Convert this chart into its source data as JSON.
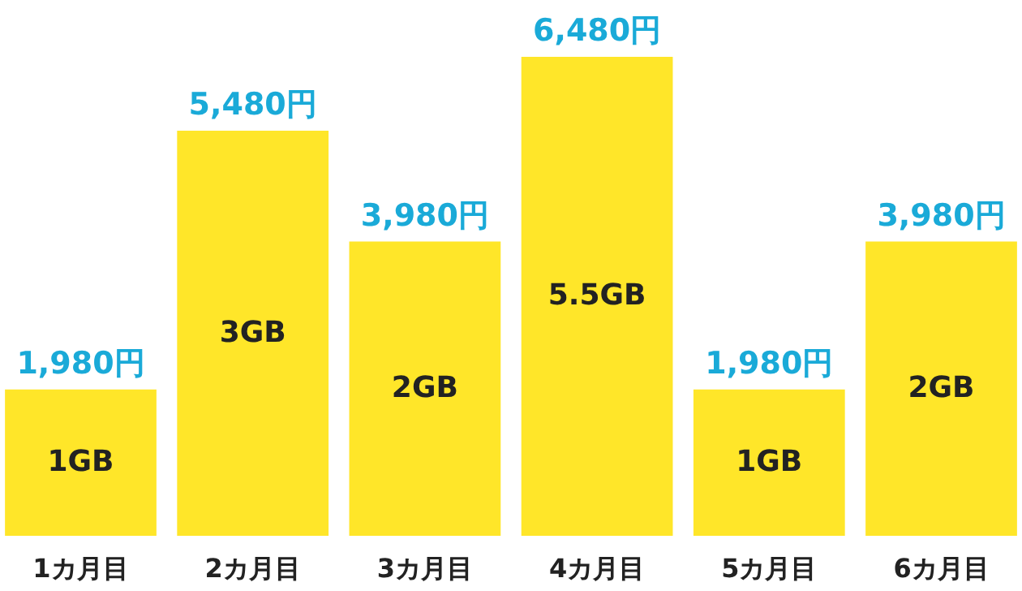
{
  "chart_data": {
    "type": "bar",
    "categories": [
      "1カ月目",
      "2カ月目",
      "3カ月目",
      "4カ月目",
      "5カ月目",
      "6カ月目"
    ],
    "values": [
      1980,
      5480,
      3980,
      6480,
      1980,
      3980
    ],
    "color": "#ffe629",
    "value_labels": [
      "1,980円",
      "5,480円",
      "3,980円",
      "6,480円",
      "1,980円",
      "3,980円"
    ],
    "annotations": [
      "1GB",
      "3GB",
      "2GB",
      "5.5GB",
      "1GB",
      "2GB"
    ],
    "tick_labels": "x",
    "grid": false
  }
}
